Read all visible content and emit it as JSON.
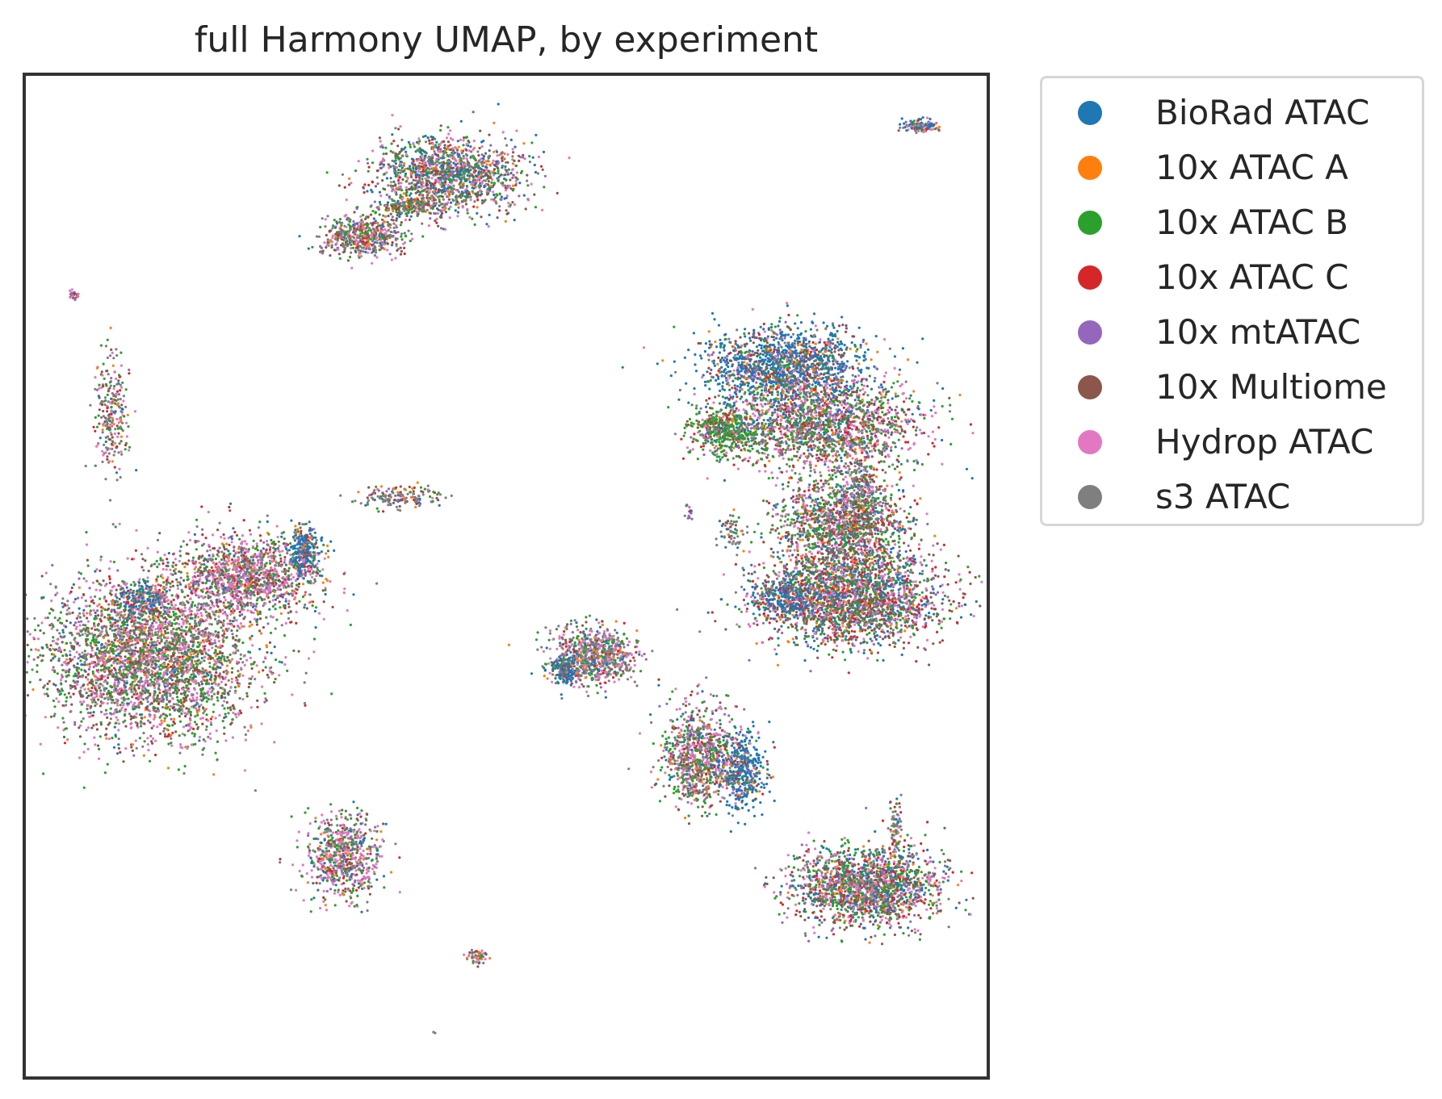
{
  "chart_data": {
    "type": "scatter",
    "title": "full Harmony UMAP, by experiment",
    "xlabel": "",
    "ylabel": "",
    "axis_ticks": "none",
    "grid": false,
    "legend_placement": "outside-top-right",
    "x_range": [
      0,
      100
    ],
    "y_range": [
      0,
      100
    ],
    "series": [
      {
        "name": "BioRad ATAC",
        "color": "#1f77b4"
      },
      {
        "name": "10x ATAC A",
        "color": "#ff7f0e"
      },
      {
        "name": "10x ATAC B",
        "color": "#2ca02c"
      },
      {
        "name": "10x ATAC C",
        "color": "#d62728"
      },
      {
        "name": "10x mtATAC",
        "color": "#9467bd"
      },
      {
        "name": "10x Multiome",
        "color": "#8c564b"
      },
      {
        "name": "Hydrop ATAC",
        "color": "#e377c2"
      },
      {
        "name": "s3 ATAC",
        "color": "#7f7f7f"
      }
    ],
    "clusters": [
      {
        "cx": 44,
        "cy": 90,
        "rx": 7,
        "ry": 3.5,
        "n": 1400,
        "weights": [
          3,
          1,
          3,
          1,
          1,
          3,
          3,
          2
        ]
      },
      {
        "cx": 35,
        "cy": 84,
        "rx": 4,
        "ry": 1.8,
        "n": 500,
        "weights": [
          1,
          1,
          3,
          1,
          1,
          3,
          3,
          3
        ]
      },
      {
        "cx": 40,
        "cy": 87,
        "rx": 3,
        "ry": 0.8,
        "n": 200,
        "weights": [
          1,
          1,
          3,
          1,
          1,
          2,
          1,
          2
        ]
      },
      {
        "cx": 93,
        "cy": 95,
        "rx": 1.8,
        "ry": 0.6,
        "n": 120,
        "weights": [
          5,
          1,
          1,
          1,
          1,
          1,
          3,
          2
        ]
      },
      {
        "cx": 5,
        "cy": 78,
        "rx": 0.5,
        "ry": 0.5,
        "n": 25,
        "weights": [
          1,
          1,
          1,
          1,
          3,
          2,
          2,
          2
        ]
      },
      {
        "cx": 9,
        "cy": 66,
        "rx": 1.5,
        "ry": 5.5,
        "n": 250,
        "weights": [
          1,
          1,
          3,
          1,
          1,
          2,
          3,
          3
        ]
      },
      {
        "cx": 39,
        "cy": 58,
        "rx": 4,
        "ry": 1.0,
        "n": 160,
        "weights": [
          1,
          1,
          1,
          1,
          1,
          2,
          1,
          6
        ]
      },
      {
        "cx": 13,
        "cy": 42,
        "rx": 10,
        "ry": 7.5,
        "n": 3500,
        "weights": [
          1,
          1,
          5,
          1,
          1,
          3,
          5,
          2
        ]
      },
      {
        "cx": 23,
        "cy": 50,
        "rx": 6.5,
        "ry": 3.5,
        "n": 1200,
        "weights": [
          1,
          1,
          3,
          1,
          1,
          3,
          6,
          2
        ]
      },
      {
        "cx": 29,
        "cy": 52.5,
        "rx": 1.6,
        "ry": 2.5,
        "n": 300,
        "weights": [
          8,
          1,
          1,
          1,
          1,
          1,
          1,
          1
        ]
      },
      {
        "cx": 12,
        "cy": 47.5,
        "rx": 2.2,
        "ry": 1.6,
        "n": 200,
        "weights": [
          7,
          1,
          1,
          1,
          1,
          1,
          1,
          1
        ]
      },
      {
        "cx": 79,
        "cy": 71,
        "rx": 7.5,
        "ry": 3.5,
        "n": 1500,
        "weights": [
          9,
          1,
          1,
          1,
          1,
          1,
          1,
          1
        ]
      },
      {
        "cx": 83,
        "cy": 65,
        "rx": 9,
        "ry": 4,
        "n": 1800,
        "weights": [
          2,
          1,
          4,
          2,
          1,
          2,
          4,
          2
        ]
      },
      {
        "cx": 73,
        "cy": 64.5,
        "rx": 3.5,
        "ry": 2,
        "n": 500,
        "weights": [
          1,
          1,
          8,
          1,
          1,
          1,
          1,
          1
        ]
      },
      {
        "cx": 87,
        "cy": 58.5,
        "rx": 2,
        "ry": 4,
        "n": 250,
        "weights": [
          1,
          1,
          1,
          1,
          1,
          1,
          1,
          6
        ]
      },
      {
        "cx": 85,
        "cy": 54.5,
        "rx": 6,
        "ry": 5,
        "n": 1600,
        "weights": [
          2,
          1,
          4,
          2,
          1,
          2,
          3,
          2
        ]
      },
      {
        "cx": 86,
        "cy": 47.5,
        "rx": 9,
        "ry": 4,
        "n": 2200,
        "weights": [
          3,
          1,
          3,
          2,
          1,
          3,
          3,
          1
        ]
      },
      {
        "cx": 79,
        "cy": 48,
        "rx": 3,
        "ry": 2,
        "n": 300,
        "weights": [
          8,
          1,
          1,
          1,
          1,
          1,
          1,
          1
        ]
      },
      {
        "cx": 73.5,
        "cy": 54.5,
        "rx": 1,
        "ry": 1.5,
        "n": 60,
        "weights": [
          1,
          1,
          1,
          1,
          1,
          1,
          1,
          8
        ]
      },
      {
        "cx": 69,
        "cy": 56.5,
        "rx": 0.4,
        "ry": 0.8,
        "n": 15,
        "weights": [
          1,
          1,
          1,
          1,
          6,
          1,
          1,
          1
        ]
      },
      {
        "cx": 59,
        "cy": 42,
        "rx": 4,
        "ry": 2.5,
        "n": 800,
        "weights": [
          2,
          1,
          3,
          1,
          1,
          1,
          4,
          4
        ]
      },
      {
        "cx": 56,
        "cy": 40.5,
        "rx": 1.2,
        "ry": 1.2,
        "n": 150,
        "weights": [
          9,
          1,
          1,
          1,
          1,
          1,
          1,
          1
        ]
      },
      {
        "cx": 70,
        "cy": 32,
        "rx": 3.5,
        "ry": 4.5,
        "n": 900,
        "weights": [
          1,
          1,
          4,
          1,
          1,
          2,
          4,
          3
        ]
      },
      {
        "cx": 74.5,
        "cy": 30.5,
        "rx": 2.2,
        "ry": 3.5,
        "n": 450,
        "weights": [
          9,
          1,
          1,
          1,
          1,
          1,
          1,
          1
        ]
      },
      {
        "cx": 33,
        "cy": 22,
        "rx": 3.5,
        "ry": 4,
        "n": 700,
        "weights": [
          2,
          1,
          4,
          1,
          1,
          1,
          5,
          2
        ]
      },
      {
        "cx": 87.5,
        "cy": 19,
        "rx": 7,
        "ry": 3.5,
        "n": 1800,
        "weights": [
          3,
          1,
          4,
          2,
          1,
          2,
          4,
          2
        ]
      },
      {
        "cx": 90.5,
        "cy": 25,
        "rx": 0.6,
        "ry": 2.5,
        "n": 80,
        "weights": [
          1,
          1,
          2,
          1,
          1,
          1,
          2,
          4
        ]
      },
      {
        "cx": 47,
        "cy": 12,
        "rx": 1.0,
        "ry": 0.6,
        "n": 60,
        "weights": [
          1,
          1,
          2,
          1,
          1,
          2,
          4,
          2
        ]
      },
      {
        "cx": 42.5,
        "cy": 4.5,
        "rx": 0.15,
        "ry": 0.15,
        "n": 2,
        "weights": [
          0,
          0,
          0,
          0,
          0,
          0,
          0,
          1
        ]
      }
    ]
  }
}
